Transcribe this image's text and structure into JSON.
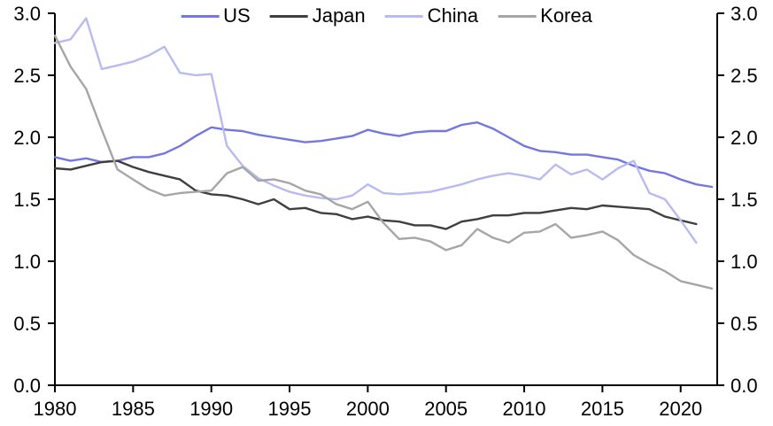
{
  "chart_data": {
    "type": "line",
    "title": "",
    "xlabel": "",
    "ylabel": "",
    "grid": false,
    "legend_position": "top-center",
    "background": "#ffffff",
    "axis_color": "#000000",
    "xlim": [
      1980,
      2022.4
    ],
    "ylim": [
      0,
      3
    ],
    "y_axis_sides": "both",
    "x": [
      1980,
      1981,
      1982,
      1983,
      1984,
      1985,
      1986,
      1987,
      1988,
      1989,
      1990,
      1991,
      1992,
      1993,
      1994,
      1995,
      1996,
      1997,
      1998,
      1999,
      2000,
      2001,
      2002,
      2003,
      2004,
      2005,
      2006,
      2007,
      2008,
      2009,
      2010,
      2011,
      2012,
      2013,
      2014,
      2015,
      2016,
      2017,
      2018,
      2019,
      2020,
      2021,
      2022
    ],
    "series": [
      {
        "name": "US",
        "color": "#7477e0",
        "values": [
          1.84,
          1.81,
          1.83,
          1.8,
          1.81,
          1.84,
          1.84,
          1.87,
          1.93,
          2.01,
          2.08,
          2.06,
          2.05,
          2.02,
          2.0,
          1.98,
          1.96,
          1.97,
          1.99,
          2.01,
          2.06,
          2.03,
          2.01,
          2.04,
          2.05,
          2.05,
          2.1,
          2.12,
          2.07,
          2.0,
          1.93,
          1.89,
          1.88,
          1.86,
          1.86,
          1.84,
          1.82,
          1.77,
          1.73,
          1.71,
          1.66,
          1.62,
          1.6
        ]
      },
      {
        "name": "Japan",
        "color": "#3f3f3f",
        "values": [
          1.75,
          1.74,
          1.77,
          1.8,
          1.81,
          1.76,
          1.72,
          1.69,
          1.66,
          1.57,
          1.54,
          1.53,
          1.5,
          1.46,
          1.5,
          1.42,
          1.43,
          1.39,
          1.38,
          1.34,
          1.36,
          1.33,
          1.32,
          1.29,
          1.29,
          1.26,
          1.32,
          1.34,
          1.37,
          1.37,
          1.39,
          1.39,
          1.41,
          1.43,
          1.42,
          1.45,
          1.44,
          1.43,
          1.42,
          1.36,
          1.33,
          1.3,
          null
        ]
      },
      {
        "name": "China",
        "color": "#b7bbf1",
        "values": [
          2.76,
          2.79,
          2.96,
          2.55,
          2.58,
          2.61,
          2.66,
          2.73,
          2.52,
          2.5,
          2.51,
          1.93,
          1.77,
          1.67,
          1.61,
          1.56,
          1.53,
          1.51,
          1.5,
          1.53,
          1.62,
          1.55,
          1.54,
          1.55,
          1.56,
          1.59,
          1.62,
          1.66,
          1.69,
          1.71,
          1.69,
          1.66,
          1.78,
          1.7,
          1.74,
          1.66,
          1.75,
          1.81,
          1.55,
          1.5,
          1.33,
          1.15,
          null
        ]
      },
      {
        "name": "Korea",
        "color": "#a6a6a6",
        "values": [
          2.82,
          2.57,
          2.39,
          2.06,
          1.74,
          1.66,
          1.58,
          1.53,
          1.55,
          1.56,
          1.57,
          1.71,
          1.76,
          1.65,
          1.66,
          1.63,
          1.57,
          1.54,
          1.46,
          1.42,
          1.48,
          1.31,
          1.18,
          1.19,
          1.16,
          1.09,
          1.13,
          1.26,
          1.19,
          1.15,
          1.23,
          1.24,
          1.3,
          1.19,
          1.21,
          1.24,
          1.17,
          1.05,
          0.98,
          0.92,
          0.84,
          0.81,
          0.78
        ]
      }
    ],
    "x_ticks": {
      "values": [
        1980,
        1985,
        1990,
        1995,
        2000,
        2005,
        2010,
        2015,
        2020
      ],
      "labels": [
        "1980",
        "1985",
        "1990",
        "1995",
        "2000",
        "2005",
        "2010",
        "2015",
        "2020"
      ]
    },
    "y_ticks": {
      "values": [
        0,
        0.5,
        1,
        1.5,
        2,
        2.5,
        3
      ],
      "labels": [
        "0.0",
        "0.5",
        "1.0",
        "1.5",
        "2.0",
        "2.5",
        "3.0"
      ]
    }
  }
}
